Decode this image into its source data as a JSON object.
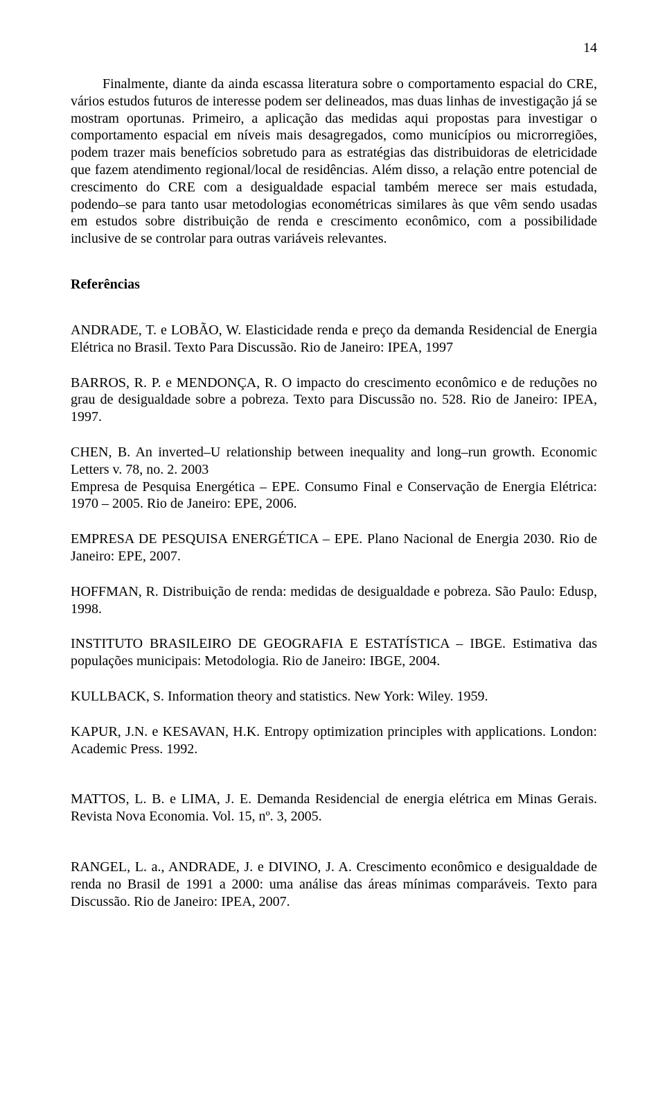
{
  "page_number": "14",
  "paragraph1": "Finalmente, diante da ainda escassa literatura sobre o comportamento espacial do CRE, vários estudos futuros de interesse podem ser  delineados, mas duas linhas de investigação já se mostram oportunas. Primeiro, a aplicação das medidas aqui propostas para investigar o comportamento espacial em níveis mais desagregados, como municípios ou microrregiões, podem trazer mais  benefícios sobretudo para as estratégias das distribuidoras de eletricidade que fazem atendimento regional/local de residências. Além disso, a relação entre potencial de crescimento do CRE  com a desigualdade espacial também merece ser mais estudada, podendo–se para tanto usar metodologias econométricas similares às que vêm sendo usadas em estudos sobre distribuição de renda e crescimento econômico, com a possibilidade inclusive de se controlar para outras variáveis relevantes.",
  "references_heading": "Referências",
  "refs": [
    "ANDRADE, T. e LOBÃO, W. Elasticidade renda e preço da demanda Residencial de Energia Elétrica no Brasil. Texto Para Discussão. Rio de Janeiro: IPEA, 1997",
    "BARROS, R. P. e MENDONÇA, R. O impacto do crescimento econômico e de reduções no grau de desigualdade sobre a pobreza. Texto para Discussão no. 528. Rio de Janeiro: IPEA, 1997.",
    "CHEN, B. An inverted–U relationship between inequality and long–run growth. Economic Letters v. 78, no. 2. 2003",
    "Empresa de Pesquisa Energética – EPE. Consumo Final e Conservação de Energia Elétrica: 1970 – 2005. Rio de Janeiro: EPE, 2006.",
    "EMPRESA DE PESQUISA ENERGÉTICA – EPE. Plano Nacional de Energia 2030. Rio de Janeiro: EPE, 2007.",
    "HOFFMAN, R. Distribuição de renda: medidas de desigualdade e pobreza. São Paulo: Edusp, 1998.",
    "INSTITUTO BRASILEIRO DE GEOGRAFIA E ESTATÍSTICA – IBGE. Estimativa das populações municipais: Metodologia. Rio de Janeiro: IBGE, 2004.",
    "KULLBACK, S. Information theory and statistics. New York: Wiley. 1959.",
    "KAPUR, J.N. e KESAVAN, H.K. Entropy optimization principles with applications. London: Academic Press. 1992.",
    "MATTOS, L. B. e LIMA, J. E.  Demanda Residencial de energia elétrica em Minas Gerais. Revista Nova Economia. Vol. 15, nº. 3, 2005.",
    "RANGEL, L. a., ANDRADE, J. e DIVINO, J. A. Crescimento econômico e desigualdade de renda no Brasil de 1991 a 2000: uma análise das áreas mínimas comparáveis. Texto para Discussão. Rio de Janeiro: IPEA, 2007."
  ],
  "joined_after": [
    2
  ],
  "extra_gap_before": [
    9,
    10
  ]
}
